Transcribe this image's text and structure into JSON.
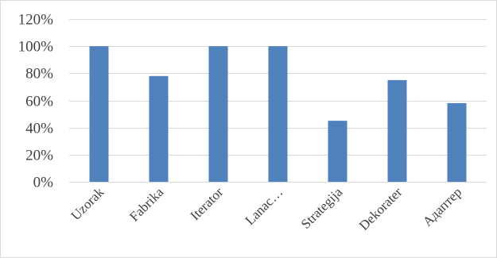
{
  "chart_data": {
    "type": "bar",
    "title": "",
    "xlabel": "",
    "ylabel": "",
    "categories": [
      "Uzorak",
      "Fabrika",
      "Iterator",
      "Lanac…",
      "Strategija",
      "Dekorater",
      "Адаптер"
    ],
    "values": [
      100,
      78,
      100,
      100,
      45,
      75,
      58
    ],
    "ylim": [
      0,
      120
    ],
    "yticks": [
      0,
      20,
      40,
      60,
      80,
      100,
      120
    ],
    "ytick_labels": [
      "0%",
      "20%",
      "40%",
      "60%",
      "80%",
      "100%",
      "120%"
    ],
    "grid": true,
    "legend": "none",
    "colors": {
      "bar": "#4f81bd",
      "grid": "#d9d9d9",
      "text": "#404040"
    }
  }
}
